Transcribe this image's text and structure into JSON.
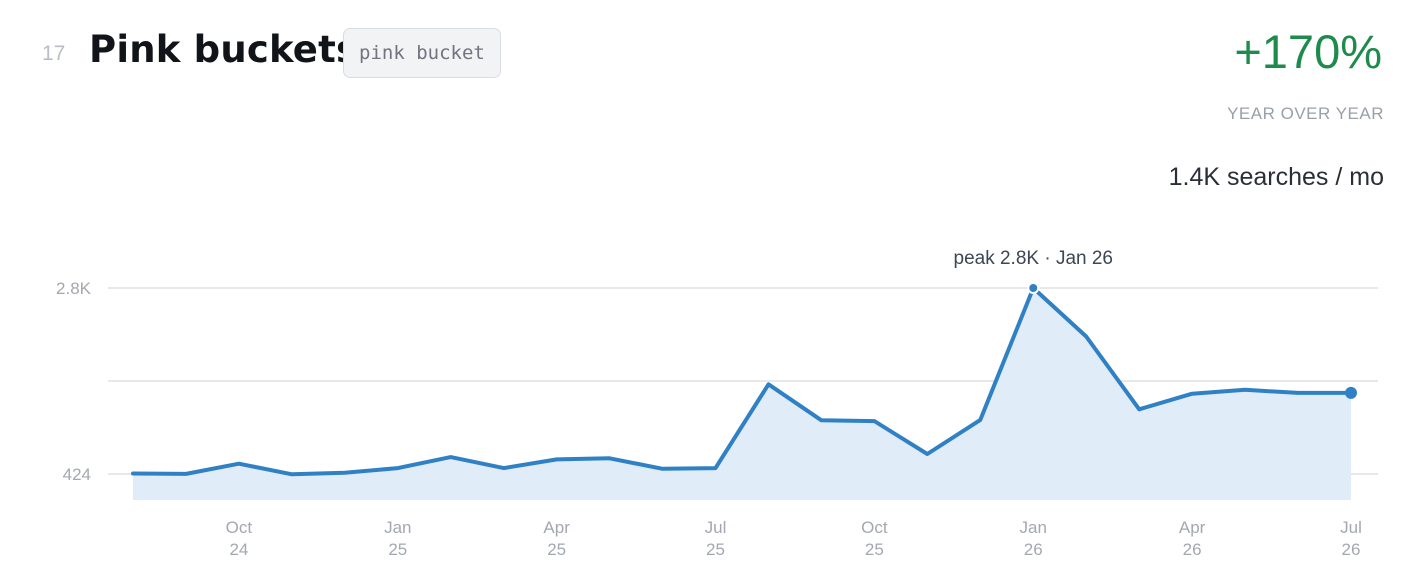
{
  "header": {
    "rank": "17",
    "title": "Pink buckets",
    "keyword": "pink bucket",
    "growth": "+170%",
    "growth_label": "YEAR OVER YEAR",
    "volume": "1.4K searches / mo"
  },
  "colors": {
    "line": "#2f80c4",
    "fill": "#e0ecf7",
    "growth": "#1e8a4c",
    "grid": "#e6e8eb"
  },
  "chart_data": {
    "type": "area",
    "x": [
      "2024-08",
      "2024-09",
      "2024-10",
      "2024-11",
      "2024-12",
      "2025-01",
      "2025-02",
      "2025-03",
      "2025-04",
      "2025-05",
      "2025-06",
      "2025-07",
      "2025-08",
      "2025-09",
      "2025-10",
      "2025-11",
      "2025-12",
      "2026-01",
      "2026-02",
      "2026-03",
      "2026-04",
      "2026-05",
      "2026-06",
      "2026-07"
    ],
    "series": [
      {
        "values": [
          430,
          425,
          555,
          420,
          440,
          500,
          640,
          500,
          610,
          625,
          490,
          500,
          1570,
          1110,
          1100,
          680,
          1115,
          2800,
          2180,
          1250,
          1450,
          1500,
          1460,
          1460
        ]
      }
    ],
    "y_ticks": [
      {
        "value": 424,
        "label": "424"
      },
      {
        "value": 2800,
        "label": "2.8K"
      }
    ],
    "x_ticks": [
      {
        "x": "2024-10",
        "line1": "Oct",
        "line2": "24"
      },
      {
        "x": "2025-01",
        "line1": "Jan",
        "line2": "25"
      },
      {
        "x": "2025-04",
        "line1": "Apr",
        "line2": "25"
      },
      {
        "x": "2025-07",
        "line1": "Jul",
        "line2": "25"
      },
      {
        "x": "2025-10",
        "line1": "Oct",
        "line2": "25"
      },
      {
        "x": "2026-01",
        "line1": "Jan",
        "line2": "26"
      },
      {
        "x": "2026-04",
        "line1": "Apr",
        "line2": "26"
      },
      {
        "x": "2026-07",
        "line1": "Jul",
        "line2": "26"
      }
    ],
    "annotation": {
      "x": "2026-01",
      "text": "peak 2.8K · Jan 26"
    },
    "grid": true,
    "ylim": [
      424,
      2800
    ]
  }
}
